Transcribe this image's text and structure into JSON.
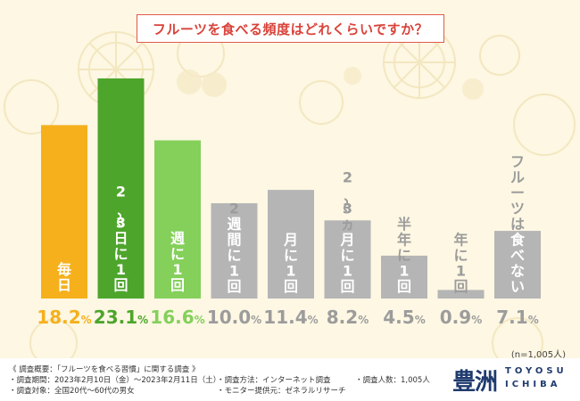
{
  "title": "フルーツを食べる頻度はどれくらいですか？",
  "sample_note": "(n=1,005人)",
  "footer": {
    "summary": "《 調査概要：「フルーツを食べる習慣」に関する調査 》",
    "period": "・調査期間：2023年2月10日（金）〜2023年2月11日（土）",
    "target": "・調査対象：全国20代〜60代の男女",
    "method": "・調査方法：インターネット調査",
    "monitor": "・モニター提供元：ゼネラルリサーチ",
    "count": "・調査人数：1,005人",
    "logo_kanji": "豊洲",
    "logo_en_top": "TOYOSU",
    "logo_en_bottom": "ICHIBA"
  },
  "colors": {
    "bar_1": "#f5b01c",
    "bar_2": "#4ea52c",
    "bar_3": "#84d05a",
    "bar_other": "#b5b5b5",
    "label_other": "#9c9c9c",
    "title_red": "#d9433a"
  },
  "chart_data": {
    "type": "bar",
    "categories": [
      "毎日",
      "2〜3日に1回",
      "週に1回",
      "2週間に1回",
      "月に1回",
      "2〜3ヵ月に1回",
      "半年に1回",
      "年に1回",
      "フルーツは食べない"
    ],
    "values": [
      18.2,
      23.1,
      16.6,
      10.0,
      11.4,
      8.2,
      4.5,
      0.9,
      7.1
    ],
    "value_labels": [
      "18.2%",
      "23.1%",
      "16.6%",
      "10.0%",
      "11.4%",
      "8.2%",
      "4.5%",
      "0.9%",
      "7.1%"
    ],
    "unit": "%",
    "ylim": [
      0,
      25
    ],
    "grid": false,
    "title": "フルーツを食べる頻度はどれくらいですか？"
  }
}
